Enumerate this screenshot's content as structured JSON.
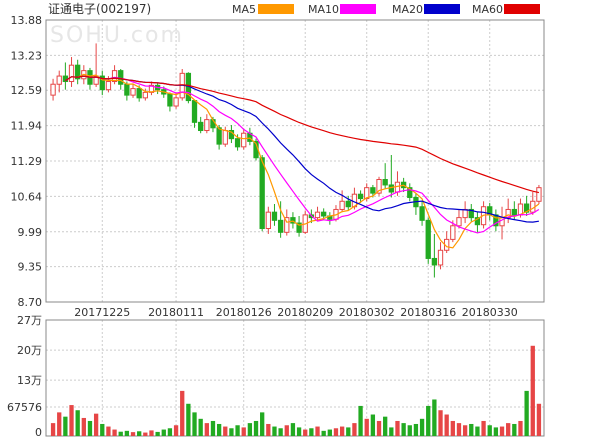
{
  "chart_data": {
    "type": "candlestick",
    "title": "证通电子(002197)",
    "watermark": "SOHU.com",
    "legend": [
      {
        "name": "MA5",
        "color": "#ff9900"
      },
      {
        "name": "MA10",
        "color": "#ff00ff"
      },
      {
        "name": "MA20",
        "color": "#0000cc"
      },
      {
        "name": "MA60",
        "color": "#e00000"
      }
    ],
    "colors": {
      "up": "#e64646",
      "down": "#22aa22",
      "grid": "#cccccc"
    },
    "price_axis": {
      "min": 8.7,
      "max": 13.88,
      "ticks": [
        "13.88",
        "13.23",
        "12.59",
        "11.94",
        "11.29",
        "10.64",
        "9.99",
        "9.35",
        "8.70"
      ]
    },
    "volume_axis": {
      "min": 0,
      "max": 270000,
      "ticks": [
        {
          "label": "27万",
          "value": 270000
        },
        {
          "label": "20万",
          "value": 200000
        },
        {
          "label": "13万",
          "value": 130000
        },
        {
          "label": "67576",
          "value": 67576
        },
        {
          "label": "0",
          "value": 0
        }
      ]
    },
    "x_ticks": [
      {
        "label": "20171225",
        "index": 8
      },
      {
        "label": "20180111",
        "index": 20
      },
      {
        "label": "20180126",
        "index": 31
      },
      {
        "label": "20180209",
        "index": 41
      },
      {
        "label": "20180302",
        "index": 51
      },
      {
        "label": "20180316",
        "index": 61
      },
      {
        "label": "20180330",
        "index": 71
      }
    ],
    "candles": [
      [
        12.5,
        12.7,
        12.8,
        12.4
      ],
      [
        12.7,
        12.85,
        12.95,
        12.55
      ],
      [
        12.85,
        12.75,
        13.1,
        12.6
      ],
      [
        12.75,
        13.05,
        13.2,
        12.65
      ],
      [
        13.05,
        12.8,
        13.15,
        12.7
      ],
      [
        12.8,
        12.95,
        13.05,
        12.7
      ],
      [
        12.95,
        12.7,
        13.0,
        12.6
      ],
      [
        12.7,
        12.85,
        13.45,
        12.65
      ],
      [
        12.85,
        12.6,
        12.95,
        12.5
      ],
      [
        12.6,
        12.75,
        12.85,
        12.55
      ],
      [
        12.75,
        12.95,
        13.05,
        12.7
      ],
      [
        12.95,
        12.7,
        12.98,
        12.6
      ],
      [
        12.7,
        12.5,
        12.75,
        12.4
      ],
      [
        12.5,
        12.62,
        12.7,
        12.45
      ],
      [
        12.62,
        12.45,
        12.68,
        12.38
      ],
      [
        12.45,
        12.55,
        12.62,
        12.4
      ],
      [
        12.55,
        12.68,
        12.75,
        12.5
      ],
      [
        12.68,
        12.6,
        12.72,
        12.52
      ],
      [
        12.6,
        12.52,
        12.66,
        12.45
      ],
      [
        12.52,
        12.3,
        12.55,
        12.2
      ],
      [
        12.3,
        12.45,
        12.55,
        12.25
      ],
      [
        12.45,
        12.9,
        12.98,
        12.4
      ],
      [
        12.9,
        12.4,
        12.92,
        12.35
      ],
      [
        12.4,
        12.0,
        12.42,
        11.9
      ],
      [
        12.0,
        11.85,
        12.1,
        11.8
      ],
      [
        11.85,
        12.05,
        12.15,
        11.8
      ],
      [
        12.05,
        11.9,
        12.1,
        11.82
      ],
      [
        11.9,
        11.6,
        11.95,
        11.5
      ],
      [
        11.6,
        11.85,
        11.92,
        11.55
      ],
      [
        11.85,
        11.7,
        11.95,
        11.62
      ],
      [
        11.7,
        11.55,
        11.78,
        11.48
      ],
      [
        11.55,
        11.8,
        11.88,
        11.5
      ],
      [
        11.8,
        11.65,
        11.9,
        11.58
      ],
      [
        11.65,
        11.35,
        11.7,
        11.3
      ],
      [
        11.35,
        10.05,
        11.4,
        10.0
      ],
      [
        10.05,
        10.35,
        10.45,
        9.95
      ],
      [
        10.35,
        10.2,
        10.5,
        10.1
      ],
      [
        10.2,
        9.98,
        10.55,
        9.88
      ],
      [
        9.98,
        10.25,
        10.4,
        9.92
      ],
      [
        10.25,
        10.15,
        10.35,
        10.05
      ],
      [
        10.15,
        9.98,
        10.28,
        9.9
      ],
      [
        9.98,
        10.3,
        10.38,
        9.95
      ],
      [
        10.3,
        10.25,
        10.4,
        10.15
      ],
      [
        10.25,
        10.35,
        10.45,
        10.2
      ],
      [
        10.35,
        10.28,
        10.42,
        10.2
      ],
      [
        10.28,
        10.22,
        10.35,
        10.12
      ],
      [
        10.22,
        10.4,
        10.48,
        10.18
      ],
      [
        10.4,
        10.55,
        10.75,
        10.35
      ],
      [
        10.55,
        10.45,
        10.65,
        10.38
      ],
      [
        10.45,
        10.68,
        10.8,
        10.4
      ],
      [
        10.68,
        10.6,
        10.75,
        10.52
      ],
      [
        10.6,
        10.8,
        10.88,
        10.55
      ],
      [
        10.8,
        10.7,
        10.85,
        10.62
      ],
      [
        10.7,
        10.95,
        11.0,
        10.65
      ],
      [
        10.95,
        10.85,
        11.25,
        10.78
      ],
      [
        10.85,
        10.72,
        11.4,
        10.62
      ],
      [
        10.72,
        10.9,
        11.1,
        10.65
      ],
      [
        10.9,
        10.8,
        10.98,
        10.72
      ],
      [
        10.8,
        10.62,
        10.88,
        10.55
      ],
      [
        10.62,
        10.45,
        10.7,
        10.3
      ],
      [
        10.45,
        10.2,
        10.55,
        10.1
      ],
      [
        10.2,
        9.5,
        10.25,
        9.4
      ],
      [
        9.5,
        9.38,
        9.95,
        9.15
      ],
      [
        9.38,
        9.65,
        9.8,
        9.3
      ],
      [
        9.65,
        9.85,
        10.0,
        9.6
      ],
      [
        9.85,
        10.1,
        10.2,
        9.8
      ],
      [
        10.1,
        10.25,
        10.4,
        10.05
      ],
      [
        10.25,
        10.4,
        10.55,
        10.15
      ],
      [
        10.4,
        10.25,
        10.5,
        10.18
      ],
      [
        10.25,
        10.12,
        10.35,
        9.98
      ],
      [
        10.12,
        10.45,
        10.55,
        10.05
      ],
      [
        10.45,
        10.3,
        10.52,
        10.2
      ],
      [
        10.3,
        10.1,
        10.4,
        10.0
      ],
      [
        10.1,
        10.25,
        10.45,
        9.85
      ],
      [
        10.25,
        10.4,
        10.6,
        10.15
      ],
      [
        10.4,
        10.3,
        10.55,
        10.22
      ],
      [
        10.3,
        10.5,
        10.6,
        10.25
      ],
      [
        10.5,
        10.35,
        10.65,
        10.28
      ],
      [
        10.35,
        10.55,
        10.72,
        10.3
      ],
      [
        10.55,
        10.8,
        10.85,
        10.5
      ]
    ],
    "volumes": [
      30000,
      55000,
      45000,
      72000,
      60000,
      42000,
      35000,
      52000,
      28000,
      22000,
      15000,
      10000,
      12000,
      9000,
      11000,
      8000,
      13000,
      9500,
      15000,
      18000,
      25000,
      105000,
      75000,
      55000,
      40000,
      30000,
      35000,
      28000,
      22000,
      18000,
      25000,
      20000,
      30000,
      35000,
      55000,
      28000,
      22000,
      18000,
      25000,
      30000,
      20000,
      15000,
      18000,
      22000,
      12000,
      15000,
      18000,
      22000,
      20000,
      30000,
      70000,
      40000,
      50000,
      35000,
      45000,
      20000,
      35000,
      30000,
      25000,
      28000,
      40000,
      70000,
      85000,
      60000,
      50000,
      35000,
      30000,
      25000,
      28000,
      22000,
      35000,
      25000,
      20000,
      22000,
      30000,
      28000,
      35000,
      105000,
      210000,
      75000
    ]
  }
}
